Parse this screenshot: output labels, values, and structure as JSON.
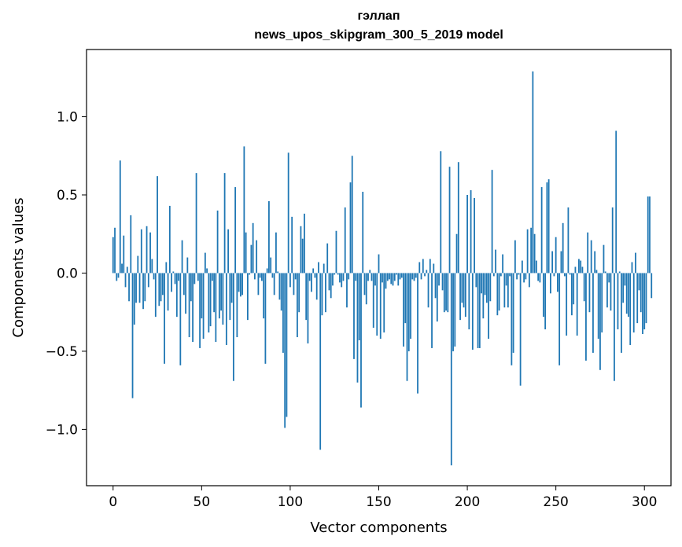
{
  "chart_data": {
    "type": "bar",
    "title": [
      "гэллап",
      "news_upos_skipgram_300_5_2019 model"
    ],
    "xlabel": "Vector components",
    "ylabel": "Components values",
    "xlim": [
      -15,
      315
    ],
    "ylim": [
      -1.36,
      1.43
    ],
    "xticks": [
      0,
      50,
      100,
      150,
      200,
      250,
      300
    ],
    "xtick_labels": [
      "0",
      "50",
      "100",
      "150",
      "200",
      "250",
      "300"
    ],
    "yticks": [
      -1.0,
      -0.5,
      0.0,
      0.5,
      1.0
    ],
    "ytick_labels": [
      "−1.0",
      "−0.5",
      "0.0",
      "0.5",
      "1.0"
    ],
    "grid": false,
    "bar_color": "#1f77b4",
    "series": [
      {
        "x_start": 0,
        "values": [
          0.23,
          0.29,
          -0.05,
          -0.03,
          0.72,
          0.06,
          0.24,
          -0.09,
          0.04,
          -0.18,
          0.37,
          -0.8,
          -0.33,
          -0.19,
          0.11,
          -0.19,
          0.28,
          -0.23,
          -0.18,
          0.3,
          -0.09,
          0.26,
          0.09,
          -0.04,
          -0.28,
          0.62,
          -0.21,
          -0.18,
          -0.14,
          -0.58,
          0.07,
          -0.24,
          0.43,
          -0.12,
          0.01,
          -0.07,
          -0.28,
          -0.05,
          -0.59,
          0.21,
          -0.14,
          -0.26,
          0.1,
          -0.41,
          -0.18,
          -0.44,
          -0.07,
          0.64,
          -0.05,
          -0.48,
          -0.29,
          -0.42,
          0.13,
          0.03,
          -0.38,
          -0.34,
          -0.05,
          -0.25,
          -0.44,
          0.4,
          -0.29,
          -0.24,
          -0.33,
          0.64,
          -0.46,
          0.28,
          -0.3,
          -0.19,
          -0.69,
          0.55,
          -0.41,
          -0.12,
          -0.15,
          -0.14,
          0.81,
          0.26,
          -0.3,
          -0.01,
          0.18,
          0.32,
          -0.04,
          0.21,
          -0.14,
          -0.03,
          -0.05,
          -0.29,
          -0.58,
          0.03,
          0.46,
          0.1,
          -0.03,
          -0.14,
          0.26,
          0.01,
          -0.17,
          -0.24,
          -0.51,
          -0.99,
          -0.92,
          0.77,
          -0.09,
          0.36,
          -0.14,
          -0.04,
          -0.41,
          -0.25,
          0.3,
          0.22,
          0.38,
          -0.3,
          -0.45,
          -0.05,
          -0.12,
          0.03,
          -0.03,
          -0.17,
          0.07,
          -1.13,
          -0.27,
          0.06,
          -0.25,
          0.19,
          -0.11,
          -0.16,
          -0.08,
          -0.01,
          0.27,
          -0.01,
          -0.06,
          -0.09,
          -0.05,
          0.42,
          -0.22,
          -0.04,
          0.58,
          0.75,
          -0.55,
          -0.05,
          -0.7,
          -0.43,
          -0.86,
          0.52,
          -0.14,
          -0.2,
          -0.05,
          0.02,
          -0.05,
          -0.35,
          -0.08,
          -0.4,
          0.12,
          -0.42,
          -0.06,
          -0.38,
          -0.1,
          -0.05,
          -0.04,
          -0.07,
          -0.08,
          -0.05,
          -0.01,
          -0.08,
          -0.04,
          -0.03,
          -0.47,
          -0.32,
          -0.69,
          -0.5,
          -0.42,
          -0.04,
          -0.05,
          -0.03,
          -0.77,
          0.07,
          -0.04,
          0.09,
          -0.02,
          0.02,
          -0.22,
          0.09,
          -0.48,
          0.06,
          -0.16,
          -0.31,
          -0.08,
          0.78,
          -0.11,
          -0.25,
          -0.24,
          -0.25,
          0.68,
          -1.23,
          -0.5,
          -0.47,
          0.25,
          0.71,
          -0.3,
          -0.19,
          -0.22,
          -0.28,
          0.5,
          -0.36,
          0.53,
          -0.49,
          0.48,
          -0.09,
          -0.48,
          -0.48,
          -0.13,
          -0.29,
          -0.14,
          -0.19,
          -0.42,
          -0.18,
          0.66,
          -0.02,
          0.15,
          -0.27,
          -0.24,
          -0.02,
          0.12,
          -0.22,
          -0.08,
          -0.22,
          -0.02,
          -0.59,
          -0.51,
          0.21,
          -0.04,
          -0.01,
          -0.72,
          0.08,
          -0.06,
          -0.04,
          0.28,
          -0.09,
          0.29,
          1.29,
          0.25,
          0.08,
          -0.05,
          -0.06,
          0.55,
          -0.28,
          -0.36,
          0.58,
          0.6,
          -0.13,
          0.14,
          -0.02,
          0.23,
          -0.12,
          -0.59,
          0.14,
          0.32,
          -0.02,
          -0.4,
          0.42,
          -0.01,
          -0.27,
          -0.2,
          0.04,
          -0.4,
          0.09,
          0.08,
          0.04,
          -0.18,
          -0.56,
          0.26,
          -0.25,
          0.21,
          -0.51,
          0.14,
          0.02,
          -0.42,
          -0.62,
          -0.38,
          0.18,
          0.01,
          -0.22,
          -0.06,
          -0.24,
          0.42,
          -0.69,
          0.91,
          -0.36,
          0.01,
          -0.51,
          -0.19,
          -0.08,
          -0.26,
          -0.28,
          -0.46,
          0.07,
          -0.38,
          0.13,
          -0.32,
          -0.11,
          -0.25,
          -0.39,
          -0.36,
          -0.32,
          0.49,
          0.49,
          -0.16
        ]
      }
    ]
  }
}
